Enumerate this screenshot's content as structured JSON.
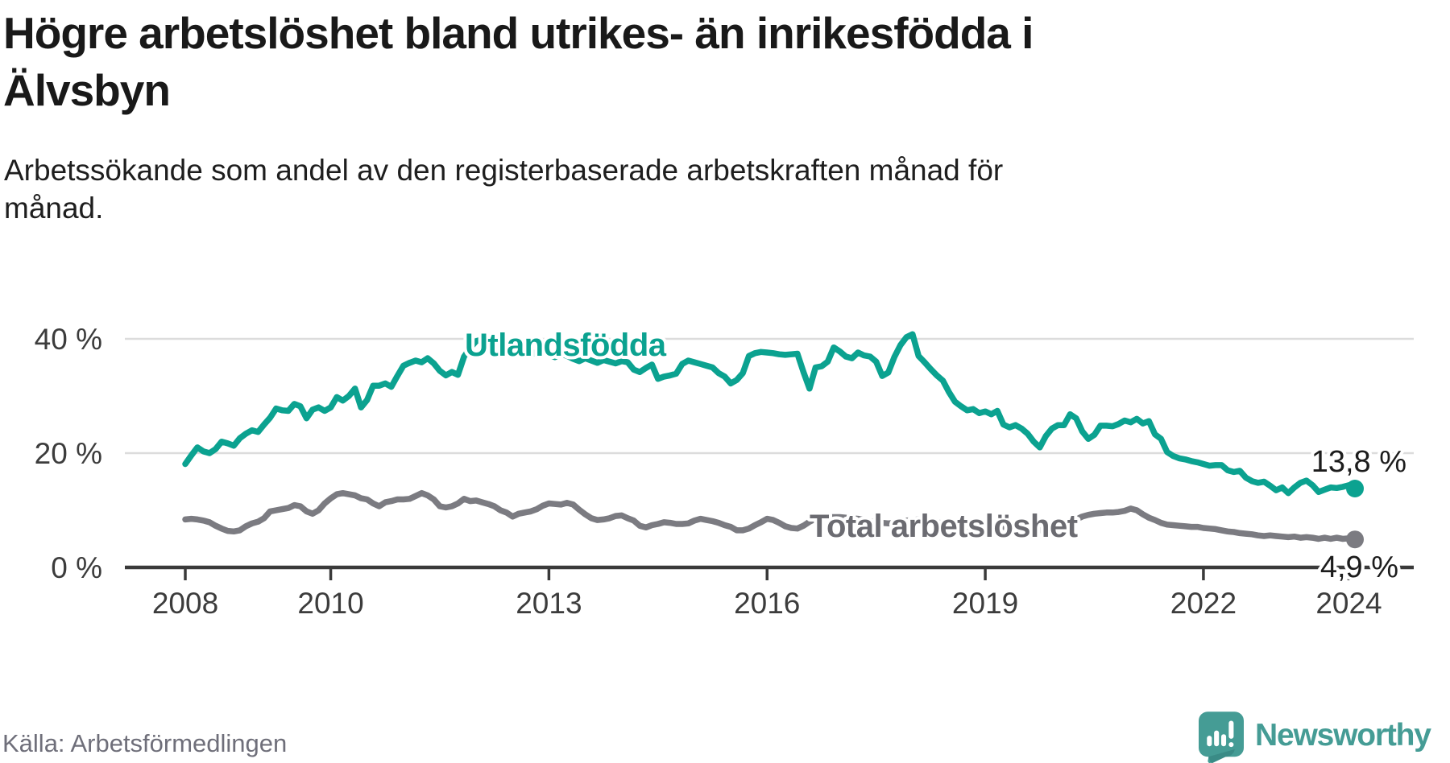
{
  "header": {
    "title_lines": [
      "Högre arbetslöshet bland utrikes- än inrikesfödda i",
      "Älvsbyn"
    ],
    "subtitle_lines": [
      "Arbetssökande som andel av den registerbaserade arbetskraften månad för",
      "månad."
    ]
  },
  "chart_data": {
    "type": "line",
    "title": "Högre arbetslöshet bland utrikes- än inrikesfödda i Älvsbyn",
    "ylabel": "",
    "xlabel": "",
    "unit": "%",
    "x_range": {
      "start": "2008-01",
      "end": "2024-02",
      "frequency": "monthly",
      "points_per_series": 194
    },
    "x_tick_years": [
      2008,
      2010,
      2013,
      2016,
      2019,
      2022,
      2024
    ],
    "y_ticks": [
      {
        "value": 0,
        "label": "0 %"
      },
      {
        "value": 20,
        "label": "20 %"
      },
      {
        "value": 40,
        "label": "40 %"
      }
    ],
    "ylim": [
      0,
      44
    ],
    "grid": "horizontal",
    "legend_position": "inline-labels",
    "series": [
      {
        "name": "Utlandsfödda",
        "color": "#0ba290",
        "label_color": "#0ba290",
        "end_label": "13,8 %",
        "values": [
          18.1,
          19.6,
          21.0,
          20.3,
          20.0,
          20.7,
          22.0,
          21.7,
          21.3,
          22.6,
          23.4,
          24.0,
          23.7,
          25.0,
          26.2,
          27.8,
          27.5,
          27.4,
          28.6,
          28.2,
          26.1,
          27.6,
          28.0,
          27.4,
          28.0,
          29.8,
          29.2,
          30.0,
          31.3,
          28.0,
          29.3,
          31.8,
          31.8,
          32.2,
          31.6,
          33.5,
          35.3,
          35.8,
          36.2,
          35.9,
          36.6,
          35.7,
          34.4,
          33.6,
          34.2,
          33.7,
          36.9,
          38.4,
          39.6,
          39.9,
          40.1,
          39.6,
          39.0,
          38.6,
          38.9,
          39.2,
          38.5,
          37.8,
          37.3,
          37.6,
          37.2,
          36.8,
          37.4,
          37.0,
          36.5,
          36.1,
          36.6,
          36.2,
          35.8,
          36.3,
          36.0,
          35.7,
          36.1,
          35.9,
          34.6,
          34.2,
          34.9,
          35.5,
          33.0,
          33.4,
          33.6,
          33.9,
          35.6,
          36.2,
          35.9,
          35.6,
          35.3,
          35.0,
          34.0,
          33.4,
          32.2,
          32.8,
          34.0,
          37.0,
          37.5,
          37.7,
          37.6,
          37.5,
          37.3,
          37.2,
          37.3,
          37.4,
          34.2,
          31.3,
          35.0,
          35.2,
          36.0,
          38.5,
          37.8,
          36.9,
          36.6,
          37.6,
          37.1,
          36.9,
          36.0,
          33.5,
          34.1,
          36.8,
          38.9,
          40.3,
          40.8,
          37.0,
          35.9,
          34.7,
          33.6,
          32.7,
          30.7,
          29.0,
          28.2,
          27.5,
          27.7,
          27.0,
          27.3,
          26.8,
          27.4,
          25.0,
          24.5,
          24.9,
          24.3,
          23.4,
          22.0,
          21.0,
          23.0,
          24.3,
          24.9,
          24.9,
          26.8,
          26.1,
          23.8,
          22.5,
          23.2,
          24.8,
          24.8,
          24.7,
          25.1,
          25.7,
          25.4,
          26.0,
          25.2,
          25.6,
          23.3,
          22.5,
          20.2,
          19.5,
          19.1,
          18.9,
          18.6,
          18.4,
          18.1,
          17.8,
          17.9,
          17.9,
          17.0,
          16.7,
          16.9,
          15.7,
          15.1,
          14.8,
          15.0,
          14.3,
          13.5,
          14.0,
          13.0,
          14.0,
          14.8,
          15.2,
          14.4,
          13.2,
          13.6,
          14.0,
          13.9,
          14.1,
          14.4,
          13.8
        ]
      },
      {
        "name": "Total arbetslöshet",
        "color": "#7b7b81",
        "label_color": "#6b6b71",
        "end_label": "4,9 %",
        "values": [
          8.4,
          8.5,
          8.4,
          8.2,
          7.9,
          7.3,
          6.8,
          6.4,
          6.3,
          6.5,
          7.2,
          7.7,
          8.0,
          8.6,
          9.8,
          10.0,
          10.2,
          10.4,
          10.9,
          10.7,
          9.8,
          9.4,
          10.0,
          11.2,
          12.1,
          12.8,
          13.0,
          12.8,
          12.6,
          12.1,
          11.9,
          11.2,
          10.7,
          11.4,
          11.6,
          11.9,
          11.9,
          12.0,
          12.5,
          13.0,
          12.6,
          11.9,
          10.7,
          10.5,
          10.7,
          11.2,
          12.0,
          11.6,
          11.7,
          11.4,
          11.1,
          10.7,
          10.0,
          9.6,
          8.9,
          9.4,
          9.6,
          9.8,
          10.2,
          10.8,
          11.2,
          11.1,
          11.0,
          11.3,
          11.0,
          10.1,
          9.3,
          8.6,
          8.3,
          8.4,
          8.6,
          9.0,
          9.1,
          8.6,
          8.2,
          7.3,
          7.0,
          7.4,
          7.6,
          7.9,
          7.8,
          7.6,
          7.6,
          7.7,
          8.2,
          8.5,
          8.3,
          8.1,
          7.8,
          7.4,
          7.1,
          6.5,
          6.5,
          6.8,
          7.4,
          7.9,
          8.5,
          8.3,
          7.8,
          7.2,
          6.9,
          6.8,
          7.3,
          8.0,
          8.5,
          8.7,
          8.8,
          8.8,
          8.8,
          8.7,
          8.6,
          8.5,
          8.3,
          8.1,
          7.9,
          7.8,
          7.7,
          7.8,
          8.0,
          8.2,
          8.3,
          8.4,
          8.3,
          8.1,
          7.9,
          7.7,
          7.5,
          7.3,
          7.1,
          7.0,
          7.1,
          7.2,
          7.3,
          7.4,
          7.3,
          7.1,
          6.9,
          6.7,
          6.6,
          6.5,
          6.4,
          6.5,
          6.7,
          7.0,
          7.2,
          7.4,
          7.8,
          8.4,
          8.9,
          9.2,
          9.4,
          9.5,
          9.6,
          9.6,
          9.7,
          9.9,
          10.3,
          10.0,
          9.3,
          8.7,
          8.3,
          7.8,
          7.5,
          7.4,
          7.3,
          7.2,
          7.1,
          7.1,
          6.9,
          6.8,
          6.7,
          6.5,
          6.3,
          6.2,
          6.0,
          5.9,
          5.8,
          5.6,
          5.5,
          5.6,
          5.5,
          5.4,
          5.3,
          5.4,
          5.2,
          5.3,
          5.2,
          5.0,
          5.2,
          5.0,
          5.2,
          5.0,
          5.1,
          4.9
        ]
      }
    ]
  },
  "footer": {
    "source": "Källa: Arbetsförmedlingen",
    "brand": "Newsworthy"
  }
}
